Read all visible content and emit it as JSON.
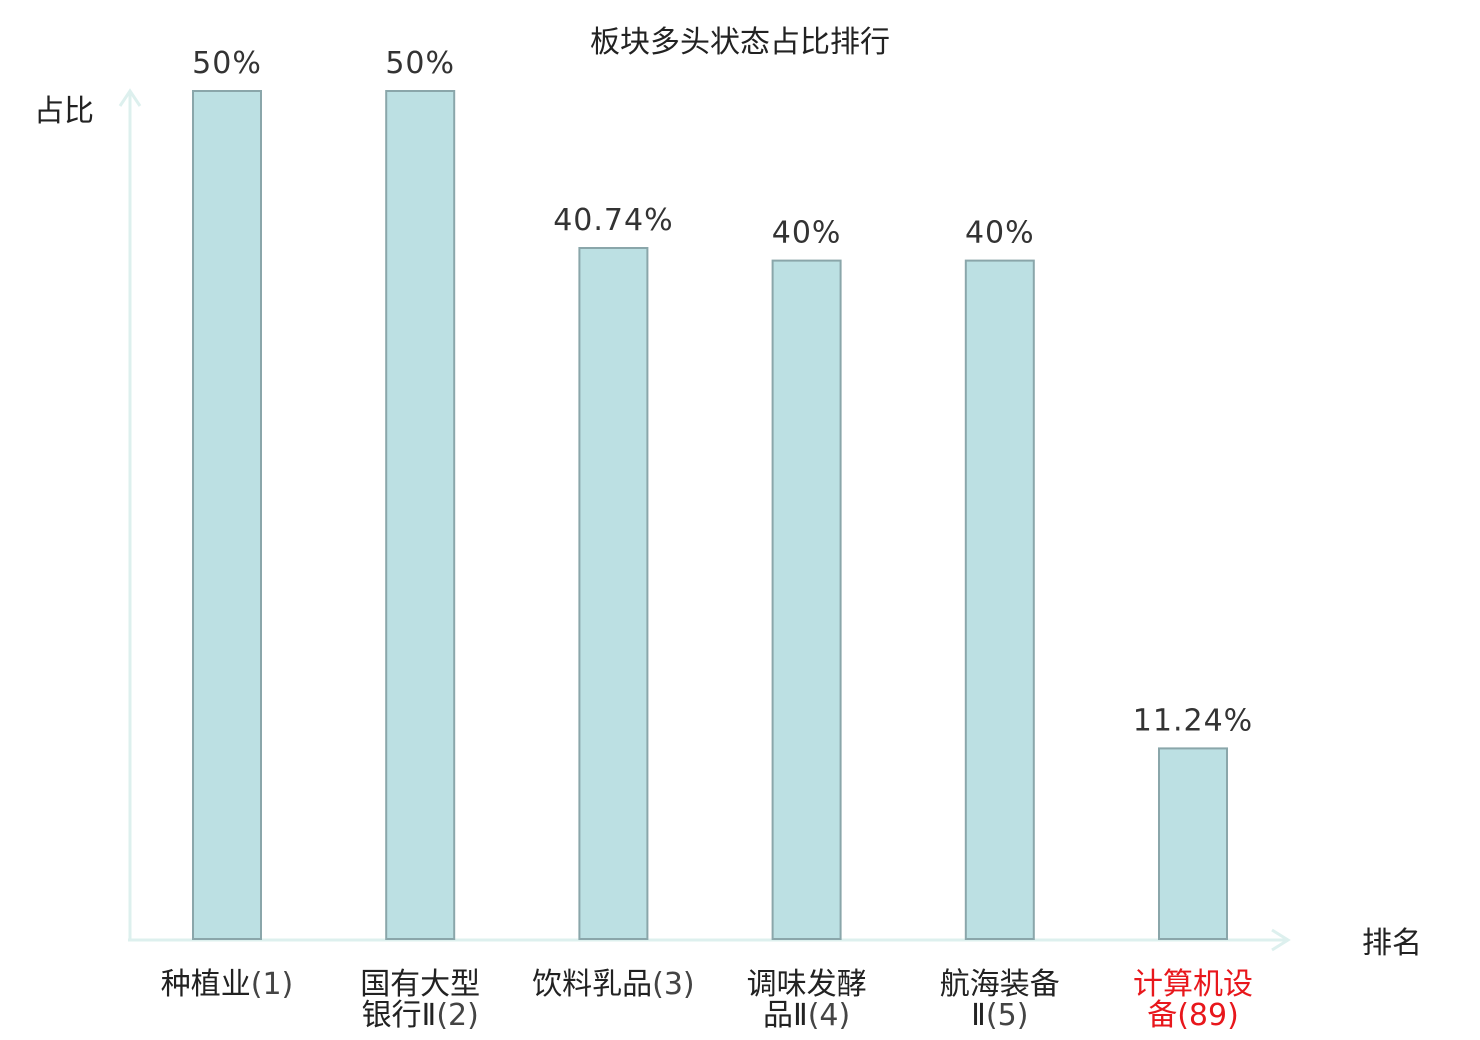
{
  "chart_data": {
    "type": "bar",
    "title": "板块多头状态占比排行",
    "ylabel": "占比",
    "xlabel": "排名",
    "ylim": [
      0,
      50
    ],
    "grid": false,
    "categories": [
      {
        "name_lines": [
          "种植业"
        ],
        "rank": "(1)",
        "value": 50,
        "value_label": "50%",
        "highlight": false
      },
      {
        "name_lines": [
          "国有大型",
          "银行Ⅱ"
        ],
        "rank": "(2)",
        "value": 50,
        "value_label": "50%",
        "highlight": false
      },
      {
        "name_lines": [
          "饮料乳品"
        ],
        "rank": "(3)",
        "value": 40.74,
        "value_label": "40.74%",
        "highlight": false
      },
      {
        "name_lines": [
          "调味发酵",
          "品Ⅱ"
        ],
        "rank": "(4)",
        "value": 40,
        "value_label": "40%",
        "highlight": false
      },
      {
        "name_lines": [
          "航海装备",
          "Ⅱ"
        ],
        "rank": "(5)",
        "value": 40,
        "value_label": "40%",
        "highlight": false
      },
      {
        "name_lines": [
          "计算机设",
          "备"
        ],
        "rank": "(89)",
        "value": 11.24,
        "value_label": "11.24%",
        "highlight": true
      }
    ],
    "colors": {
      "bar_fill": "#bce0e3",
      "bar_stroke": "#8aa6aa",
      "axis": "#ddf0ee",
      "highlight_text": "#e8171c"
    }
  }
}
